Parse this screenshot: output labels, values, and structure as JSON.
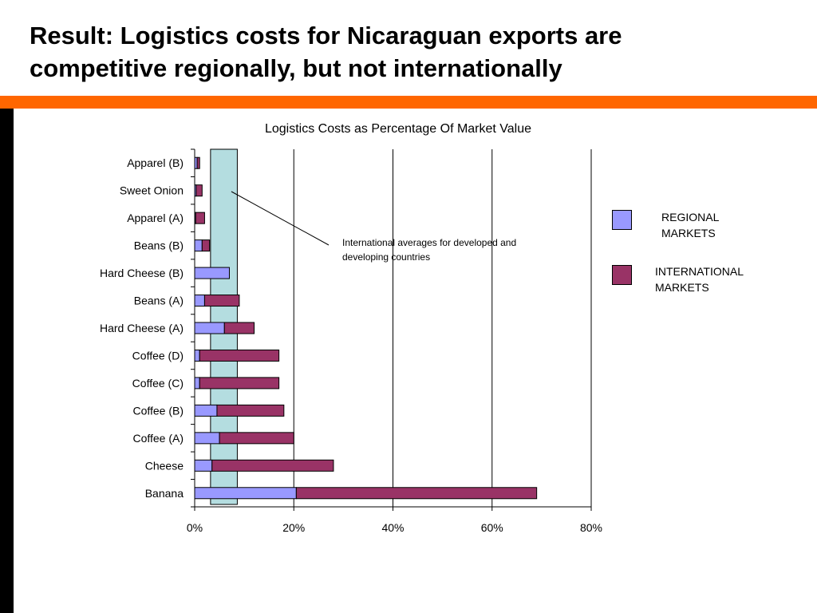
{
  "slide": {
    "title_lines": [
      "Result: Logistics costs for Nicaraguan exports are",
      "competitive regionally, but not internationally"
    ]
  },
  "colors": {
    "accent_bar": "#ff6600",
    "side_bar": "#000000",
    "regional": "#9999ff",
    "international": "#993366",
    "band": "#b4dde0"
  },
  "chart_data": {
    "type": "bar",
    "orientation": "horizontal",
    "stacked": true,
    "title": "Logistics Costs as Percentage Of Market Value",
    "categories": [
      "Apparel (B)",
      "Sweet Onion",
      "Apparel (A)",
      "Beans (B)",
      "Hard Cheese (B)",
      "Beans (A)",
      "Hard Cheese (A)",
      "Coffee (D)",
      "Coffee (C)",
      "Coffee (B)",
      "Coffee (A)",
      "Cheese",
      "Banana"
    ],
    "series": [
      {
        "name": "REGIONAL MARKETS",
        "color": "#9999ff",
        "values": [
          0.5,
          0.3,
          0.2,
          1.5,
          7,
          2,
          6,
          1,
          1,
          4.5,
          5,
          3.5,
          20.5
        ]
      },
      {
        "name": "INTERNATIONAL MARKETS",
        "color": "#993366",
        "values": [
          0.5,
          1.2,
          1.8,
          1.5,
          0,
          7,
          6,
          16,
          16,
          13.5,
          15,
          24.5,
          48.5
        ]
      }
    ],
    "x_ticks": [
      "0%",
      "20%",
      "40%",
      "60%",
      "80%"
    ],
    "xlim": [
      0,
      80
    ],
    "grid": "vertical major gridlines",
    "reference_band": {
      "from": 3.2,
      "to": 8.6
    },
    "annotation": {
      "text_lines": [
        "International averages for developed and",
        "developing countries"
      ]
    },
    "legend": {
      "position": "right",
      "entries": [
        {
          "lines": [
            "REGIONAL",
            "MARKETS"
          ],
          "color": "#9999ff"
        },
        {
          "lines": [
            "INTERNATIONAL",
            "MARKETS"
          ],
          "color": "#993366"
        }
      ]
    }
  }
}
